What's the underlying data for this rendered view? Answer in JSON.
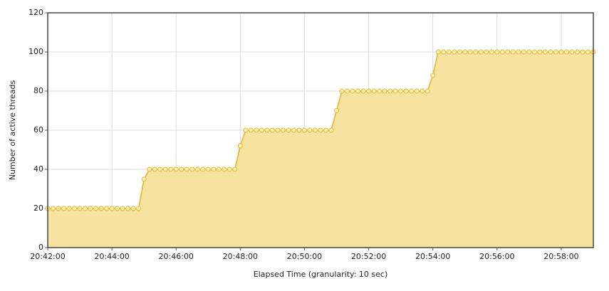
{
  "chart_data": {
    "type": "area-line",
    "x_label": "Elapsed Time (granularity: 10 sec)",
    "y_label": "Number of active threads",
    "x": [
      "20:42:00",
      "20:42:10",
      "20:42:20",
      "20:42:30",
      "20:42:40",
      "20:42:50",
      "20:43:00",
      "20:43:10",
      "20:43:20",
      "20:43:30",
      "20:43:40",
      "20:43:50",
      "20:44:00",
      "20:44:10",
      "20:44:20",
      "20:44:30",
      "20:44:40",
      "20:44:50",
      "20:45:00",
      "20:45:10",
      "20:45:20",
      "20:45:30",
      "20:45:40",
      "20:45:50",
      "20:46:00",
      "20:46:10",
      "20:46:20",
      "20:46:30",
      "20:46:40",
      "20:46:50",
      "20:47:00",
      "20:47:10",
      "20:47:20",
      "20:47:30",
      "20:47:40",
      "20:47:50",
      "20:48:00",
      "20:48:10",
      "20:48:20",
      "20:48:30",
      "20:48:40",
      "20:48:50",
      "20:49:00",
      "20:49:10",
      "20:49:20",
      "20:49:30",
      "20:49:40",
      "20:49:50",
      "20:50:00",
      "20:50:10",
      "20:50:20",
      "20:50:30",
      "20:50:40",
      "20:50:50",
      "20:51:00",
      "20:51:10",
      "20:51:20",
      "20:51:30",
      "20:51:40",
      "20:51:50",
      "20:52:00",
      "20:52:10",
      "20:52:20",
      "20:52:30",
      "20:52:40",
      "20:52:50",
      "20:53:00",
      "20:53:10",
      "20:53:20",
      "20:53:30",
      "20:53:40",
      "20:53:50",
      "20:54:00",
      "20:54:10",
      "20:54:20",
      "20:54:30",
      "20:54:40",
      "20:54:50",
      "20:55:00",
      "20:55:10",
      "20:55:20",
      "20:55:30",
      "20:55:40",
      "20:55:50",
      "20:56:00",
      "20:56:10",
      "20:56:20",
      "20:56:30",
      "20:56:40",
      "20:56:50",
      "20:57:00",
      "20:57:10",
      "20:57:20",
      "20:57:30",
      "20:57:40",
      "20:57:50",
      "20:58:00",
      "20:58:10",
      "20:58:20",
      "20:58:30",
      "20:58:40",
      "20:58:50",
      "20:59:00"
    ],
    "series": [
      {
        "color": "#e6c04a",
        "fill": "#f7e3a0",
        "marker_fill": "#fbf0b0",
        "values": [
          20,
          20,
          20,
          20,
          20,
          20,
          20,
          20,
          20,
          20,
          20,
          20,
          20,
          20,
          20,
          20,
          20,
          20,
          35,
          40,
          40,
          40,
          40,
          40,
          40,
          40,
          40,
          40,
          40,
          40,
          40,
          40,
          40,
          40,
          40,
          40,
          52,
          60,
          60,
          60,
          60,
          60,
          60,
          60,
          60,
          60,
          60,
          60,
          60,
          60,
          60,
          60,
          60,
          60,
          70,
          80,
          80,
          80,
          80,
          80,
          80,
          80,
          80,
          80,
          80,
          80,
          80,
          80,
          80,
          80,
          80,
          80,
          88,
          100,
          100,
          100,
          100,
          100,
          100,
          100,
          100,
          100,
          100,
          100,
          100,
          100,
          100,
          100,
          100,
          100,
          100,
          100,
          100,
          100,
          100,
          100,
          100,
          100,
          100,
          100,
          100,
          100,
          100
        ]
      }
    ],
    "xlim": [
      "20:42:00",
      "20:59:00"
    ],
    "xticks": [
      "20:42:00",
      "20:44:00",
      "20:46:00",
      "20:48:00",
      "20:50:00",
      "20:52:00",
      "20:54:00",
      "20:56:00",
      "20:58:00"
    ],
    "ylim": [
      0,
      120
    ],
    "yticks": [
      0,
      20,
      40,
      60,
      80,
      100,
      120
    ],
    "grid": true
  }
}
